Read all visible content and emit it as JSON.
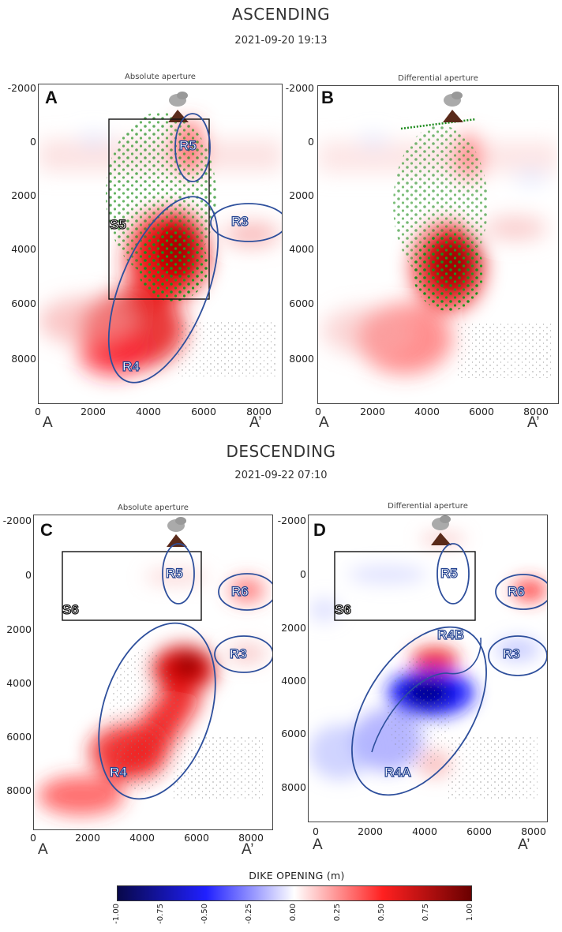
{
  "ascending": {
    "title": "ASCENDING",
    "date": "2021-09-20 19:13",
    "panels": [
      {
        "letter": "A",
        "subtitle": "Absolute aperture",
        "labels": [
          "R5",
          "R3",
          "R4",
          "S5"
        ]
      },
      {
        "letter": "B",
        "subtitle": "Differential aperture",
        "labels": []
      }
    ]
  },
  "descending": {
    "title": "DESCENDING",
    "date": "2021-09-22 07:10",
    "panels": [
      {
        "letter": "C",
        "subtitle": "Absolute aperture",
        "labels": [
          "R5",
          "R6",
          "R3",
          "R4",
          "S6"
        ]
      },
      {
        "letter": "D",
        "subtitle": "Differential aperture",
        "labels": [
          "R5",
          "R6",
          "R4B",
          "R3",
          "R4A",
          "S6"
        ]
      }
    ]
  },
  "axes": {
    "y_ticks": [
      "-2000",
      "0",
      "2000",
      "4000",
      "6000",
      "8000"
    ],
    "x_ticks": [
      "0",
      "2000",
      "4000",
      "6000",
      "8000"
    ],
    "start_label": "A",
    "end_label": "A’"
  },
  "colorbar": {
    "title": "DIKE OPENING (m)",
    "ticks": [
      "-1.00",
      "-0.75",
      "-0.50",
      "-0.25",
      "0.00",
      "0.25",
      "0.50",
      "0.75",
      "1.00"
    ],
    "colors": {
      "low": "#08084a",
      "mid_low": "#2020ff",
      "zero": "#ffffff",
      "mid_high": "#ff2020",
      "high": "#6a0000"
    }
  }
}
